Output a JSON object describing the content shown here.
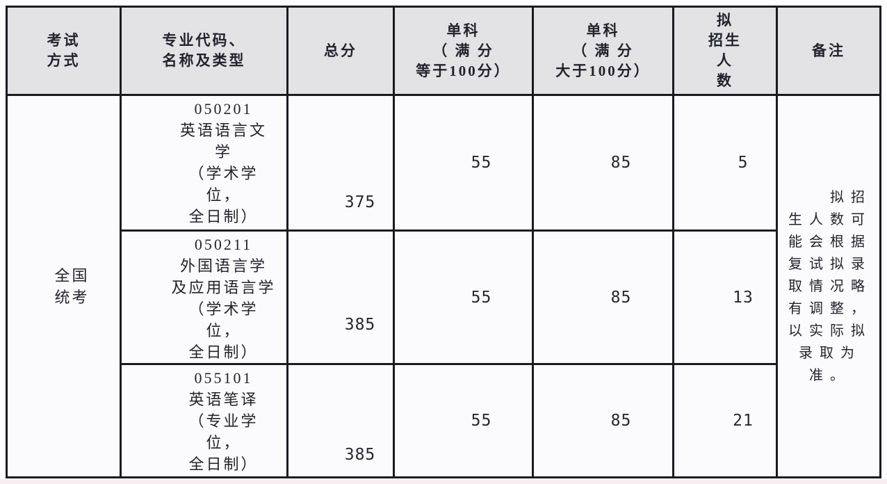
{
  "table": {
    "header": {
      "exam_method": "考试\n方式",
      "major_code": "专业代码、\n名称及类型",
      "total_score": "总分",
      "single_subject_eq100": "单科\n（ 满 分\n等于100分）",
      "single_subject_gt100": "单科\n（ 满 分\n大于100分）",
      "planned_enrollment": "拟\n招生\n人\n数",
      "remarks": "备注"
    },
    "exam_method_value": "全国\n统考",
    "rows": [
      {
        "major": "050201\n英语语言文\n学\n（学术学\n位，\n全日制）",
        "total": "375",
        "single_eq100": "55",
        "single_gt100": "85",
        "enrollment": "5"
      },
      {
        "major": "050211\n外国语言学\n及应用语言学\n（学术学\n位，\n全日制）",
        "total": "385",
        "single_eq100": "55",
        "single_gt100": "85",
        "enrollment": "13"
      },
      {
        "major": "055101\n英语笔译\n（专业学\n位，\n全日制）",
        "total": "385",
        "single_eq100": "55",
        "single_gt100": "85",
        "enrollment": "21"
      }
    ],
    "remarks_value": "　　拟招\n生人数可\n能会根据\n复试拟录\n取情况略\n有调整，\n以实际拟\n录取为\n准。",
    "colors": {
      "border": "#1a1a22",
      "header_bg": "#e3e3e5",
      "cell_bg": "#fbfbfd",
      "text": "#23232e"
    }
  }
}
